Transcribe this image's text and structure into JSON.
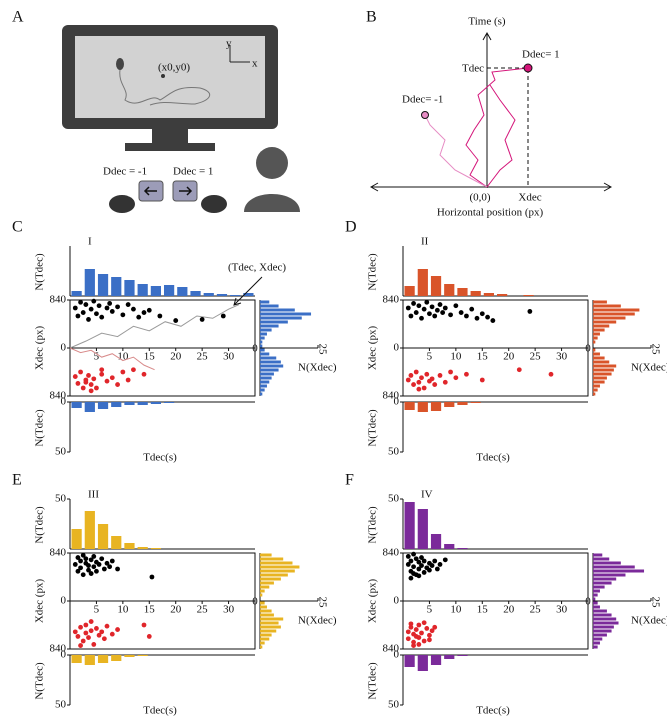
{
  "diagram": {
    "a_label": "A",
    "start_label": "(x0,y0)",
    "screen_y": "y",
    "screen_x": "x",
    "left_key_label": "Ddec = -1",
    "right_key_label": "Ddec = 1",
    "b_label": "B",
    "time_axis": "Time (s)",
    "b_right_label": "Ddec= 1",
    "b_left_label": "Ddec= -1",
    "t_label": "Tdec",
    "origin_label": "(0,0)",
    "x_label": "Xdec",
    "h_axis": "Horizontal position (px)"
  },
  "chart_data": [
    {
      "type": "scatter_hist",
      "label": "C",
      "title": "I",
      "color": "#3b6fc6",
      "xlabel": "Tdec(s)",
      "ylabel": "Xdec (px)",
      "top_ylabel": "N(Tdec)",
      "bottom_ylabel": "N(Tdec)",
      "side_label": "N(Xdec)",
      "annotation": "(Tdec, Xdec)",
      "xlim": [
        0,
        35
      ],
      "xticks": [
        5,
        10,
        15,
        20,
        25,
        30
      ],
      "ylim": [
        -840,
        840
      ],
      "yticks": [
        {
          "value": 840,
          "label": "840"
        },
        0,
        {
          "value": -840,
          "label": "840"
        }
      ],
      "bins": [
        0,
        2.5,
        5,
        7.5,
        10,
        12.5,
        15,
        17.5,
        20,
        22.5,
        25,
        27.5,
        30,
        32.5,
        35
      ],
      "top_counts": [
        5,
        27,
        22,
        19,
        16,
        12,
        10,
        11,
        9,
        5,
        3,
        2,
        1,
        3
      ],
      "bottom_counts": [
        6,
        10,
        7,
        5,
        3,
        3,
        2,
        1,
        0,
        0,
        0,
        0,
        0,
        0
      ],
      "hist_ylim": [
        0,
        50
      ],
      "bottom_yticks": [
        0,
        50
      ],
      "side_bins": [
        -840,
        -770,
        -700,
        -630,
        -560,
        -490,
        -420,
        -350,
        -280,
        -210,
        -140,
        -70,
        0,
        70,
        140,
        210,
        280,
        350,
        420,
        490,
        560,
        630,
        700,
        770,
        840
      ],
      "side_counts": [
        1,
        2,
        3,
        4,
        5,
        6,
        8,
        10,
        9,
        7,
        4,
        2,
        1,
        1,
        2,
        3,
        5,
        8,
        12,
        18,
        22,
        15,
        8,
        4
      ],
      "side_xlim": [
        0,
        25
      ],
      "side_xticks": [
        0,
        25
      ],
      "trajectories": [
        {
          "color": "#9a9a9a",
          "x": [
            0,
            3,
            6,
            9,
            12,
            15,
            18,
            21,
            24,
            27,
            30,
            32
          ],
          "values": [
            0,
            120,
            260,
            200,
            380,
            300,
            460,
            380,
            560,
            520,
            680,
            760
          ]
        },
        {
          "color": "#d88a8a",
          "x": [
            0,
            2,
            4,
            6,
            8,
            10,
            12,
            14,
            16
          ],
          "values": [
            0,
            -80,
            -40,
            -160,
            -100,
            -220,
            -160,
            -300,
            -380
          ]
        }
      ],
      "series": [
        {
          "color": "#000000",
          "x": [
            1,
            1.5,
            2,
            2.5,
            3,
            3.5,
            4,
            4.5,
            5,
            5.5,
            6,
            7,
            7.5,
            8,
            9,
            10,
            11,
            12,
            13,
            14,
            15,
            17,
            20,
            25,
            29
          ],
          "values": [
            700,
            560,
            800,
            620,
            760,
            500,
            680,
            820,
            600,
            740,
            540,
            700,
            780,
            640,
            720,
            580,
            760,
            680,
            540,
            620,
            660,
            560,
            480,
            500,
            560
          ]
        },
        {
          "color": "#e0262b",
          "x": [
            1,
            1.5,
            2,
            2.5,
            3,
            3.5,
            4,
            4.5,
            5,
            6,
            7,
            8,
            9,
            10,
            11,
            12,
            14,
            4,
            6,
            3
          ],
          "values": [
            -500,
            -620,
            -420,
            -700,
            -560,
            -480,
            -640,
            -540,
            -700,
            -460,
            -580,
            -520,
            -640,
            -420,
            -560,
            -380,
            -460,
            -750,
            -380,
            -600
          ]
        }
      ]
    },
    {
      "type": "scatter_hist",
      "label": "D",
      "title": "II",
      "color": "#d9542a",
      "xlabel": "Tdec(s)",
      "ylabel": "Xdec (px)",
      "top_ylabel": "N(Tdec)",
      "bottom_ylabel": "N(Tdec)",
      "side_label": "N(Xdec)",
      "xlim": [
        0,
        35
      ],
      "xticks": [
        5,
        10,
        15,
        20,
        25,
        30
      ],
      "ylim": [
        -840,
        840
      ],
      "yticks": [
        {
          "value": 840,
          "label": "840"
        },
        0,
        {
          "value": -840,
          "label": "840"
        }
      ],
      "bins": [
        0,
        2.5,
        5,
        7.5,
        10,
        12.5,
        15,
        17.5,
        20,
        22.5,
        25,
        27.5,
        30,
        32.5,
        35
      ],
      "top_counts": [
        10,
        27,
        20,
        12,
        8,
        5,
        3,
        2,
        0,
        1,
        0,
        0,
        0,
        0
      ],
      "bottom_counts": [
        8,
        10,
        9,
        5,
        3,
        1,
        0,
        0,
        0,
        0,
        0,
        0,
        0,
        0
      ],
      "hist_ylim": [
        0,
        50
      ],
      "bottom_yticks": [
        0,
        50
      ],
      "side_bins": [
        -840,
        -770,
        -700,
        -630,
        -560,
        -490,
        -420,
        -350,
        -280,
        -210,
        -140,
        -70,
        0,
        70,
        140,
        210,
        280,
        350,
        420,
        490,
        560,
        630,
        700,
        770,
        840
      ],
      "side_counts": [
        1,
        2,
        3,
        5,
        6,
        8,
        9,
        10,
        7,
        5,
        3,
        1,
        0,
        1,
        2,
        3,
        5,
        7,
        10,
        14,
        18,
        20,
        12,
        6
      ],
      "side_xlim": [
        0,
        25
      ],
      "side_xticks": [
        0,
        25
      ],
      "series": [
        {
          "color": "#000000",
          "x": [
            1,
            1.5,
            2,
            2.5,
            3,
            3.5,
            4,
            4.5,
            5,
            5.5,
            6,
            6.5,
            7,
            7.5,
            8,
            9,
            10,
            11,
            12,
            13,
            14,
            15,
            16,
            17,
            24
          ],
          "values": [
            700,
            560,
            780,
            620,
            740,
            520,
            680,
            800,
            600,
            720,
            560,
            660,
            760,
            620,
            700,
            580,
            740,
            620,
            560,
            680,
            520,
            600,
            540,
            480,
            640
          ]
        },
        {
          "color": "#e0262b",
          "x": [
            1,
            1.5,
            2,
            2.5,
            3,
            3.5,
            4,
            4.5,
            5,
            5.5,
            6,
            7,
            8,
            9,
            10,
            12,
            15,
            22,
            28,
            3
          ],
          "values": [
            -560,
            -480,
            -640,
            -420,
            -600,
            -520,
            -700,
            -460,
            -580,
            -540,
            -640,
            -480,
            -600,
            -420,
            -520,
            -460,
            -560,
            -380,
            -460,
            -720
          ]
        }
      ]
    },
    {
      "type": "scatter_hist",
      "label": "E",
      "title": "III",
      "color": "#e8b422",
      "xlabel": "Tdec(s)",
      "ylabel": "Xdec (px)",
      "top_ylabel": "N(Tdec)",
      "bottom_ylabel": "N(Tdec)",
      "side_label": "N(Xdec)",
      "xlim": [
        0,
        35
      ],
      "xticks": [
        5,
        10,
        15,
        20,
        25,
        30
      ],
      "ylim": [
        -840,
        840
      ],
      "yticks": [
        {
          "value": 840,
          "label": "840"
        },
        0,
        {
          "value": -840,
          "label": "840"
        }
      ],
      "bins": [
        0,
        2.5,
        5,
        7.5,
        10,
        12.5,
        15,
        17.5,
        20,
        22.5,
        25,
        27.5,
        30,
        32.5,
        35
      ],
      "top_counts": [
        20,
        38,
        25,
        13,
        6,
        2,
        1,
        0,
        0,
        0,
        0,
        0,
        0,
        0
      ],
      "bottom_counts": [
        8,
        10,
        8,
        6,
        2,
        1,
        0,
        0,
        0,
        0,
        0,
        0,
        0,
        0
      ],
      "hist_ylim": [
        0,
        50
      ],
      "top_yticks": [
        50
      ],
      "bottom_yticks": [
        0,
        50
      ],
      "side_bins": [
        -840,
        -770,
        -700,
        -630,
        -560,
        -490,
        -420,
        -350,
        -280,
        -210,
        -140,
        -70,
        0,
        70,
        140,
        210,
        280,
        350,
        420,
        490,
        560,
        630,
        700,
        770,
        840
      ],
      "side_counts": [
        1,
        2,
        4,
        5,
        7,
        9,
        8,
        10,
        6,
        5,
        3,
        2,
        0,
        1,
        2,
        4,
        6,
        9,
        12,
        15,
        17,
        14,
        10,
        5
      ],
      "side_xlim": [
        0,
        25
      ],
      "side_xticks": [
        0,
        25
      ],
      "series": [
        {
          "color": "#000000",
          "x": [
            1,
            1.5,
            1.5,
            2,
            2,
            2.5,
            2.5,
            3,
            3,
            3.5,
            3.5,
            4,
            4,
            4.5,
            4.5,
            5,
            5,
            5.5,
            6,
            6.5,
            7,
            7.5,
            8,
            9,
            15.5
          ],
          "values": [
            640,
            760,
            520,
            700,
            580,
            800,
            460,
            660,
            740,
            540,
            620,
            720,
            480,
            780,
            600,
            680,
            520,
            640,
            740,
            560,
            660,
            600,
            700,
            560,
            420
          ]
        },
        {
          "color": "#e0262b",
          "x": [
            1,
            1.5,
            2,
            2.5,
            3,
            3,
            3.5,
            4,
            4.5,
            5,
            5.5,
            6,
            6.5,
            7,
            8,
            9,
            14,
            15,
            2,
            4
          ],
          "values": [
            -540,
            -620,
            -460,
            -700,
            -560,
            -420,
            -640,
            -520,
            -760,
            -480,
            -600,
            -540,
            -660,
            -440,
            -580,
            -500,
            -420,
            -620,
            -780,
            -360
          ]
        }
      ]
    },
    {
      "type": "scatter_hist",
      "label": "F",
      "title": "IV",
      "color": "#7b2a9a",
      "xlabel": "Tdec(s)",
      "ylabel": "Xdec (px)",
      "top_ylabel": "N(Tdec)",
      "bottom_ylabel": "N(Tdec)",
      "side_label": "N(Xdec)",
      "xlim": [
        0,
        35
      ],
      "xticks": [
        5,
        10,
        15,
        20,
        25,
        30
      ],
      "ylim": [
        -840,
        840
      ],
      "yticks": [
        {
          "value": 840,
          "label": "840"
        },
        0,
        {
          "value": -840,
          "label": "840"
        }
      ],
      "bins": [
        0,
        2.5,
        5,
        7.5,
        10,
        12.5,
        15,
        17.5,
        20,
        22.5,
        25,
        27.5,
        30,
        32.5,
        35
      ],
      "top_counts": [
        47,
        40,
        15,
        5,
        1,
        0,
        0,
        0,
        0,
        0,
        0,
        0,
        0,
        0
      ],
      "bottom_counts": [
        12,
        16,
        10,
        4,
        1,
        0,
        0,
        0,
        0,
        0,
        0,
        0,
        0,
        0
      ],
      "hist_ylim": [
        0,
        50
      ],
      "top_yticks": [
        50
      ],
      "bottom_yticks": [
        0,
        50
      ],
      "side_bins": [
        -840,
        -770,
        -700,
        -630,
        -560,
        -490,
        -420,
        -350,
        -280,
        -210,
        -140,
        -70,
        0,
        70,
        140,
        210,
        280,
        350,
        420,
        490,
        560,
        630,
        700,
        770,
        840
      ],
      "side_counts": [
        2,
        3,
        4,
        6,
        8,
        9,
        11,
        10,
        8,
        6,
        3,
        2,
        1,
        2,
        3,
        5,
        8,
        10,
        14,
        22,
        18,
        12,
        7,
        4
      ],
      "side_xlim": [
        0,
        25
      ],
      "side_xticks": [
        0,
        25
      ],
      "series": [
        {
          "color": "#000000",
          "x": [
            1,
            1,
            1.5,
            1.5,
            2,
            2,
            2.5,
            2.5,
            3,
            3,
            3.5,
            3.5,
            4,
            4,
            4.5,
            5,
            5,
            5.5,
            6,
            6.5,
            7,
            8,
            1.5,
            2,
            3
          ],
          "values": [
            640,
            780,
            520,
            700,
            600,
            820,
            460,
            740,
            560,
            680,
            620,
            760,
            500,
            700,
            580,
            660,
            540,
            620,
            700,
            560,
            640,
            720,
            400,
            480,
            440
          ]
        },
        {
          "color": "#e0262b",
          "x": [
            1,
            1,
            1.5,
            2,
            2,
            2.5,
            3,
            3,
            3.5,
            4,
            4.5,
            5,
            5.5,
            6,
            2,
            3,
            4,
            1.5,
            2.5,
            5
          ],
          "values": [
            -540,
            -660,
            -460,
            -720,
            -580,
            -500,
            -640,
            -420,
            -560,
            -700,
            -480,
            -600,
            -520,
            -460,
            -780,
            -760,
            -380,
            -400,
            -620,
            -680
          ]
        }
      ]
    }
  ]
}
